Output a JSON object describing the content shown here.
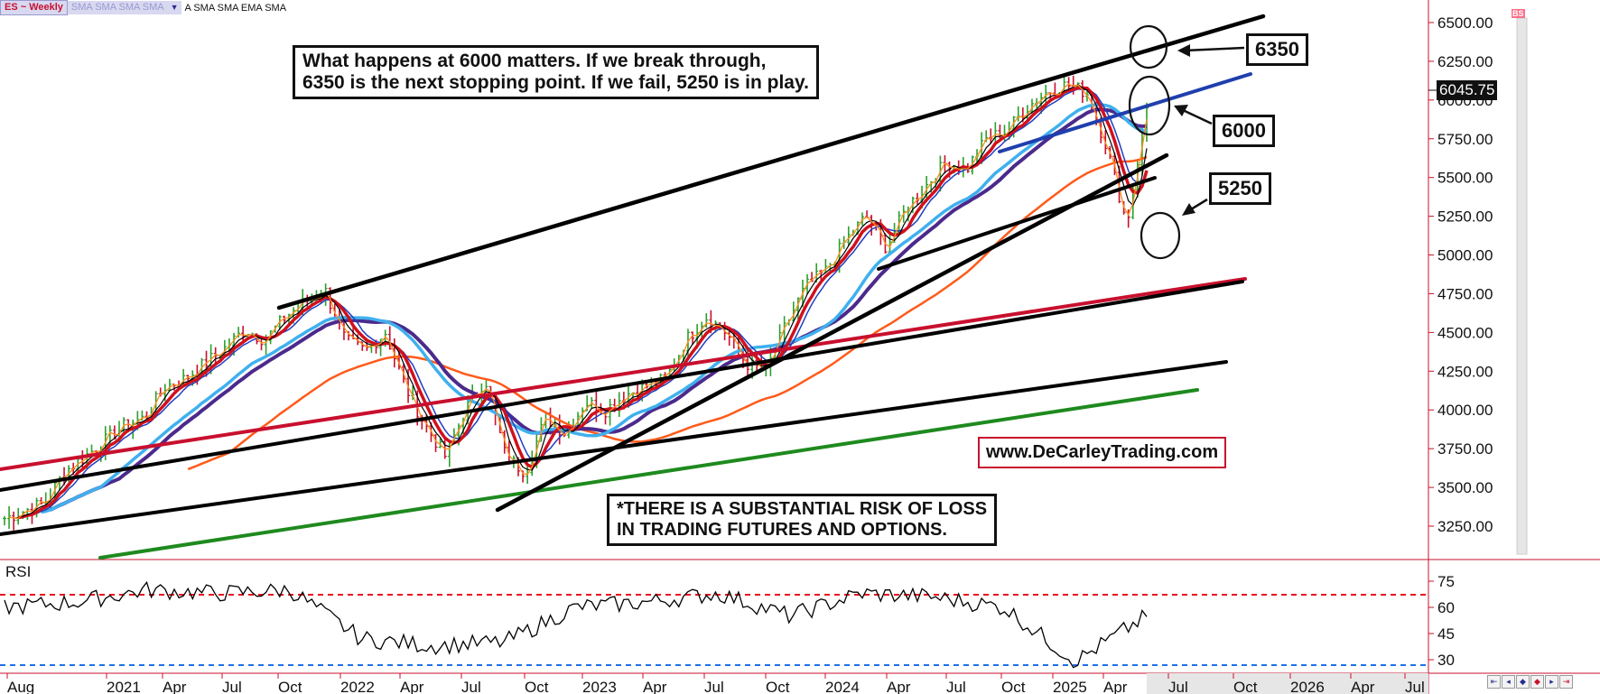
{
  "toolbar": {
    "symbol": "ES ~ Weekly",
    "faded_studies": "SMA SMA SMA SMA",
    "studies": "A SMA SMA EMA SMA"
  },
  "price_axis": {
    "ticks": [
      "6500.00",
      "6250.00",
      "6000.00",
      "5750.00",
      "5500.00",
      "5250.00",
      "5000.00",
      "4750.00",
      "4500.00",
      "4250.00",
      "4000.00",
      "3750.00",
      "3500.00",
      "3250.00"
    ],
    "last_price": "6045.75"
  },
  "rsi_axis": {
    "label": "RSI",
    "ticks": [
      "75",
      "60",
      "45",
      "30"
    ]
  },
  "time_axis": {
    "ticks": [
      "Aug",
      "2021",
      "Apr",
      "Jul",
      "Oct",
      "2022",
      "Apr",
      "Jul",
      "Oct",
      "2023",
      "Apr",
      "Jul",
      "Oct",
      "2024",
      "Apr",
      "Jul",
      "Oct",
      "2025",
      "Apr",
      "Jul",
      "Oct",
      "2026",
      "Apr",
      "Jul"
    ]
  },
  "annotations": {
    "main_note": "What happens at 6000 matters. If we break through,\n6350 is the next stopping point. If we fail, 5250 is in play.",
    "risk_note": "*THERE IS A SUBSTANTIAL RISK OF LOSS\n IN TRADING FUTURES AND OPTIONS.",
    "website": "www.DeCarleyTrading.com",
    "level_6350": "6350",
    "level_6000": "6000",
    "level_5250": "5250"
  },
  "badge": "BS",
  "colors": {
    "up_bar": "#2ca02c",
    "down_bar": "#c8102e",
    "ma_orange": "#ff8c1a",
    "ma_black": "#000000",
    "ma_red": "#d0101e",
    "ma_blue": "#1f3fbf",
    "ma_lightblue": "#3fb0ee",
    "ma_purple": "#4b2a8c",
    "ma_darkorange": "#ff5a1a",
    "rsi_line": "#000000",
    "rsi_upper": "#e8101e",
    "rsi_lower": "#1f6fe8",
    "trend_black": "#000000",
    "trend_red": "#c8102e",
    "trend_blue": "#1f3fae",
    "trend_green": "#1e8a1e"
  },
  "chart_data": {
    "type": "line",
    "title": "ES ~ Weekly",
    "ylim": [
      3100,
      6650
    ],
    "series": [
      {
        "name": "ES",
        "x": [
          "2020-08",
          "2020-09",
          "2020-10",
          "2020-11",
          "2020-12",
          "2021-01",
          "2021-02",
          "2021-03",
          "2021-04",
          "2021-05",
          "2021-06",
          "2021-07",
          "2021-08",
          "2021-09",
          "2021-10",
          "2021-11",
          "2021-12",
          "2022-01",
          "2022-02",
          "2022-03",
          "2022-04",
          "2022-05",
          "2022-06",
          "2022-07",
          "2022-08",
          "2022-09",
          "2022-10",
          "2022-11",
          "2022-12",
          "2023-01",
          "2023-02",
          "2023-03",
          "2023-04",
          "2023-05",
          "2023-06",
          "2023-07",
          "2023-08",
          "2023-09",
          "2023-10",
          "2023-11",
          "2023-12",
          "2024-01",
          "2024-02",
          "2024-03",
          "2024-04",
          "2024-05",
          "2024-06",
          "2024-07",
          "2024-08",
          "2024-09",
          "2024-10",
          "2024-11",
          "2024-12",
          "2025-01",
          "2025-02",
          "2025-03",
          "2025-04",
          "2025-05"
        ],
        "values": [
          3300,
          3350,
          3400,
          3600,
          3700,
          3800,
          3900,
          3950,
          4150,
          4200,
          4300,
          4400,
          4520,
          4450,
          4600,
          4700,
          4770,
          4450,
          4380,
          4500,
          4150,
          3900,
          3700,
          4000,
          4200,
          3700,
          3600,
          3950,
          3850,
          4050,
          4000,
          4100,
          4150,
          4200,
          4450,
          4600,
          4500,
          4300,
          4250,
          4550,
          4800,
          4900,
          5100,
          5250,
          5050,
          5300,
          5450,
          5600,
          5550,
          5750,
          5800,
          5950,
          6050,
          6100,
          6050,
          5700,
          5200,
          5950
        ]
      },
      {
        "name": "RSI",
        "x": [
          "2020-08",
          "2020-12",
          "2021-04",
          "2021-08",
          "2021-12",
          "2022-04",
          "2022-08",
          "2022-12",
          "2023-04",
          "2023-08",
          "2023-12",
          "2024-04",
          "2024-08",
          "2024-12",
          "2025-02",
          "2025-04",
          "2025-05"
        ],
        "values": [
          60,
          63,
          70,
          68,
          70,
          42,
          38,
          40,
          60,
          63,
          68,
          55,
          68,
          66,
          60,
          29,
          55
        ]
      }
    ],
    "rsi_levels": [
      70,
      30
    ],
    "annotations": [
      "6350",
      "6000",
      "5250"
    ]
  }
}
